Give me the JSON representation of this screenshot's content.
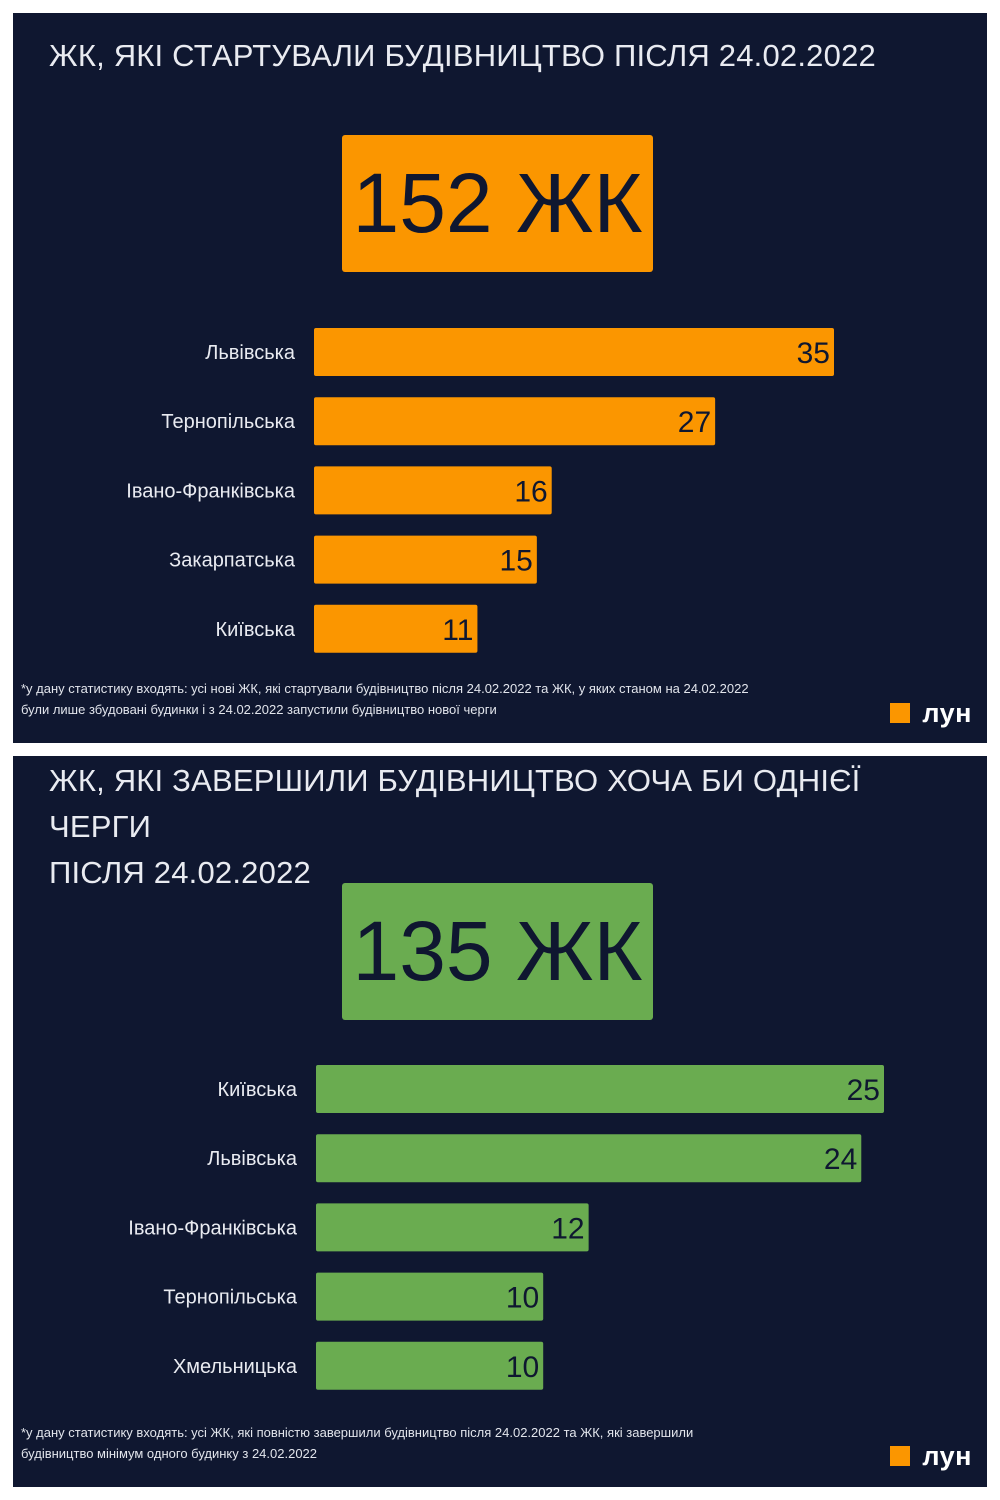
{
  "brand": {
    "name": "лун",
    "logo_color": "#fb9600"
  },
  "panels": [
    {
      "title": "ЖК, ЯКІ СТАРТУВАЛИ БУДІВНИЦТВО ПІСЛЯ 24.02.2022",
      "total": "152 ЖК",
      "accent": "#fb9600",
      "footnote_line1": "*у дану статистику входять: усі нові ЖК, які стартували будівництво після 24.02.2022  та  ЖК, у яких станом на 24.02.2022",
      "footnote_line2": "були лише збудовані будинки  і з 24.02.2022 запустили будівництво нової черги"
    },
    {
      "title_line1": "ЖК, ЯКІ ЗАВЕРШИЛИ БУДІВНИЦТВО ХОЧА БИ ОДНІЄЇ ЧЕРГИ",
      "title_line2": "ПІСЛЯ 24.02.2022",
      "total": "135 ЖК",
      "accent": "#6aac50",
      "footnote_line1": "*у дану статистику входять: усі ЖК, які повністю завершили будівництво після 24.02.2022  та  ЖК, які завершили",
      "footnote_line2": "будівництво мінімум одного будинку з 24.02.2022"
    }
  ],
  "chart_data": [
    {
      "type": "bar",
      "orientation": "horizontal",
      "title": "ЖК, ЯКІ СТАРТУВАЛИ БУДІВНИЦТВО ПІСЛЯ 24.02.2022",
      "categories": [
        "Львівська",
        "Тернопільська",
        "Івано-Франківська",
        "Закарпатська",
        "Київська"
      ],
      "values": [
        35,
        27,
        16,
        15,
        11
      ],
      "color": "#fb9600",
      "xlim": [
        0,
        35
      ],
      "grid": false,
      "data_labels": true
    },
    {
      "type": "bar",
      "orientation": "horizontal",
      "title": "ЖК, ЯКІ ЗАВЕРШИЛИ БУДІВНИЦТВО ХОЧА БИ ОДНІЄЇ ЧЕРГИ ПІСЛЯ 24.02.2022",
      "categories": [
        "Київська",
        "Львівська",
        "Івано-Франківська",
        "Тернопільська",
        "Хмельницька"
      ],
      "values": [
        25,
        24,
        12,
        10,
        10
      ],
      "color": "#6aac50",
      "xlim": [
        0,
        25
      ],
      "grid": false,
      "data_labels": true
    }
  ]
}
